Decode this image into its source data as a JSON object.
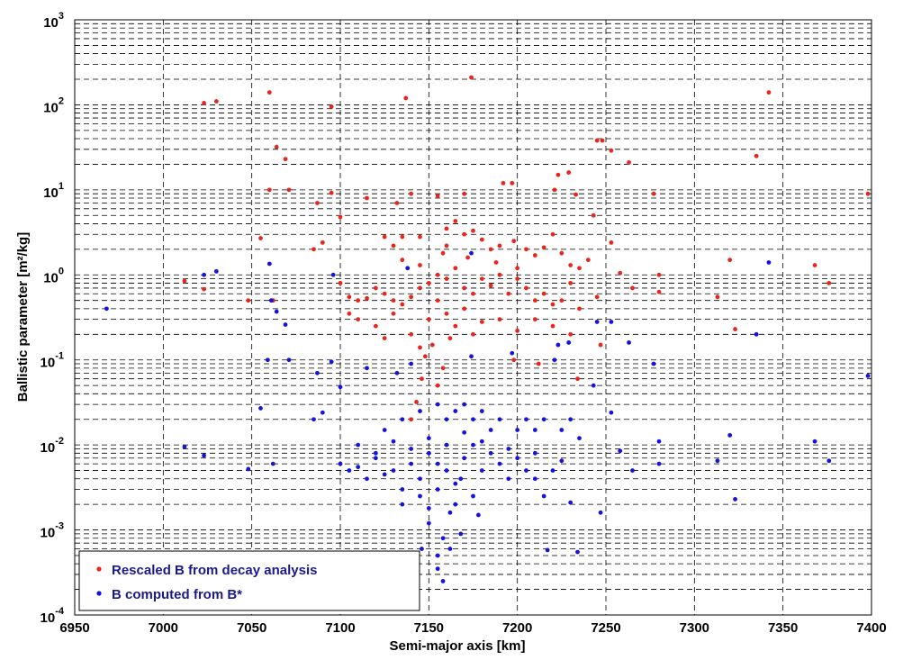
{
  "chart_data": {
    "type": "scatter",
    "x_label": "Semi-major axis [km]",
    "y_label": "Ballistic parameter [m²/kg]",
    "xlim": [
      6950,
      7400
    ],
    "xticks": [
      6950,
      7000,
      7050,
      7100,
      7150,
      7200,
      7250,
      7300,
      7350,
      7400
    ],
    "ylim": [
      0.0001,
      1000
    ],
    "yticks": [
      {
        "value": 0.0001,
        "label": "10",
        "exponent": "-4"
      },
      {
        "value": 0.001,
        "label": "10",
        "exponent": "-3"
      },
      {
        "value": 0.01,
        "label": "10",
        "exponent": "-2"
      },
      {
        "value": 0.1,
        "label": "10",
        "exponent": "-1"
      },
      {
        "value": 1,
        "label": "10",
        "exponent": "0"
      },
      {
        "value": 10,
        "label": "10",
        "exponent": "1"
      },
      {
        "value": 100,
        "label": "10",
        "exponent": "2"
      },
      {
        "value": 1000,
        "label": "10",
        "exponent": "3"
      }
    ],
    "log_y": true,
    "grid": true,
    "minor_grid": true,
    "legend": "lower-left",
    "series": [
      {
        "name": "Rescaled B from decay analysis",
        "color": "#e8261c",
        "x": [
          7023,
          7030,
          7060,
          7095,
          7137,
          7174,
          7342,
          7064,
          7069,
          7060,
          7071,
          7095,
          7087,
          7100,
          7055,
          7012,
          7023,
          7048,
          7062,
          7085,
          7090,
          7115,
          7132,
          7140,
          7155,
          7170,
          7192,
          7197,
          7221,
          7223,
          7229,
          7233,
          7245,
          7248,
          7253,
          7263,
          7277,
          7243,
          7253,
          7258,
          7265,
          7280,
          7280,
          7313,
          7320,
          7323,
          7335,
          7368,
          7376,
          7398,
          7247,
          7234,
          7212,
          7198,
          7158,
          7155,
          7146,
          7140,
          7143,
          7148,
          7152,
          7125,
          7130,
          7135,
          7145,
          7160,
          7165,
          7170,
          7175,
          7180,
          7185,
          7190,
          7198,
          7205,
          7210,
          7215,
          7220,
          7225,
          7230,
          7235,
          7240,
          7100,
          7105,
          7110,
          7115,
          7120,
          7125,
          7130,
          7135,
          7140,
          7145,
          7150,
          7155,
          7160,
          7165,
          7170,
          7175,
          7180,
          7185,
          7190,
          7195,
          7200,
          7205,
          7210,
          7215,
          7220,
          7225,
          7230,
          7235,
          7245,
          7110,
          7120,
          7130,
          7140,
          7150,
          7160,
          7170,
          7180,
          7190,
          7200,
          7210,
          7220,
          7230,
          7125,
          7145,
          7162,
          7175,
          7135,
          7145,
          7158,
          7172,
          7188,
          7200,
          7160,
          7155,
          7165,
          7105
        ],
        "values": [
          105,
          110,
          140,
          95,
          120,
          210,
          140,
          32,
          23,
          10,
          10,
          9.2,
          7,
          4.8,
          2.7,
          0.85,
          0.68,
          0.5,
          0.5,
          2,
          2.4,
          8,
          7,
          9,
          8.5,
          9,
          12,
          12,
          10,
          15,
          16,
          8.8,
          38,
          38,
          29,
          21,
          9,
          5,
          2.4,
          1.05,
          0.7,
          1.0,
          0.63,
          0.55,
          1.5,
          0.23,
          25,
          1.3,
          0.8,
          9,
          0.15,
          0.06,
          0.09,
          0.1,
          0.08,
          0.05,
          0.06,
          0.02,
          0.032,
          0.11,
          0.15,
          2.8,
          2.2,
          2.8,
          2.8,
          3.5,
          4.3,
          3,
          3.3,
          2.6,
          2,
          2.2,
          2.5,
          2,
          1.7,
          2.1,
          3,
          1.8,
          1.3,
          1.2,
          1.5,
          0.8,
          0.55,
          0.5,
          0.53,
          0.7,
          0.6,
          0.5,
          0.45,
          0.55,
          0.7,
          0.8,
          1.0,
          0.9,
          1.2,
          0.7,
          0.6,
          0.9,
          0.75,
          1.0,
          0.6,
          0.9,
          0.7,
          0.5,
          0.6,
          0.45,
          0.5,
          0.8,
          0.4,
          0.55,
          0.3,
          0.25,
          0.35,
          0.2,
          0.3,
          0.35,
          0.4,
          0.28,
          0.3,
          0.22,
          0.3,
          0.25,
          0.2,
          0.18,
          0.14,
          0.18,
          0.2,
          1.5,
          1.3,
          1.8,
          1.6,
          1.4,
          1.2,
          2.2,
          0.5,
          0.25,
          0.35
        ]
      },
      {
        "name": "B computed from B*",
        "color": "#1414e0",
        "x": [
          6968,
          7023,
          7030,
          7060,
          7096,
          7138,
          7174,
          7342,
          7061,
          7064,
          7069,
          7059,
          7071,
          7095,
          7087,
          7100,
          7055,
          7012,
          7023,
          7048,
          7062,
          7085,
          7090,
          7115,
          7132,
          7140,
          7174,
          7197,
          7221,
          7223,
          7229,
          7245,
          7253,
          7263,
          7277,
          7243,
          7253,
          7258,
          7265,
          7280,
          7280,
          7313,
          7320,
          7323,
          7335,
          7368,
          7376,
          7398,
          7247,
          7234,
          7217,
          7158,
          7155,
          7146,
          7158,
          7155,
          7162,
          7150,
          7168,
          7100,
          7105,
          7110,
          7115,
          7120,
          7125,
          7130,
          7135,
          7140,
          7145,
          7150,
          7155,
          7160,
          7165,
          7170,
          7175,
          7180,
          7185,
          7190,
          7195,
          7200,
          7205,
          7210,
          7215,
          7220,
          7225,
          7230,
          7135,
          7145,
          7155,
          7165,
          7175,
          7125,
          7135,
          7145,
          7155,
          7160,
          7165,
          7170,
          7175,
          7180,
          7185,
          7190,
          7200,
          7205,
          7210,
          7215,
          7225,
          7230,
          7235,
          7150,
          7160,
          7170,
          7180,
          7195,
          7210,
          7140,
          7130,
          7120,
          7110,
          7168,
          7150,
          7178,
          7162
        ],
        "values": [
          0.4,
          1.0,
          1.1,
          1.35,
          1.0,
          1.2,
          1.8,
          1.4,
          0.5,
          0.37,
          0.26,
          0.1,
          0.1,
          0.095,
          0.07,
          0.048,
          0.027,
          0.0095,
          0.0075,
          0.0052,
          0.006,
          0.02,
          0.024,
          0.08,
          0.07,
          0.09,
          0.11,
          0.12,
          0.1,
          0.15,
          0.16,
          0.28,
          0.28,
          0.16,
          0.09,
          0.05,
          0.024,
          0.0085,
          0.005,
          0.011,
          0.006,
          0.0065,
          0.013,
          0.0023,
          0.2,
          0.011,
          0.0065,
          0.065,
          0.0016,
          0.00055,
          0.00058,
          0.0008,
          0.0005,
          0.0006,
          0.00025,
          0.00035,
          0.0006,
          0.0012,
          0.0009,
          0.006,
          0.005,
          0.0055,
          0.004,
          0.007,
          0.0045,
          0.005,
          0.003,
          0.006,
          0.004,
          0.008,
          0.006,
          0.005,
          0.0035,
          0.007,
          0.01,
          0.005,
          0.008,
          0.006,
          0.004,
          0.007,
          0.005,
          0.004,
          0.0025,
          0.005,
          0.0065,
          0.0021,
          0.002,
          0.0025,
          0.003,
          0.002,
          0.0025,
          0.015,
          0.02,
          0.025,
          0.03,
          0.02,
          0.025,
          0.03,
          0.02,
          0.025,
          0.015,
          0.02,
          0.015,
          0.02,
          0.015,
          0.02,
          0.015,
          0.02,
          0.012,
          0.012,
          0.01,
          0.014,
          0.011,
          0.009,
          0.008,
          0.009,
          0.011,
          0.008,
          0.01,
          0.004,
          0.0018,
          0.0015,
          0.0016
        ]
      }
    ]
  }
}
